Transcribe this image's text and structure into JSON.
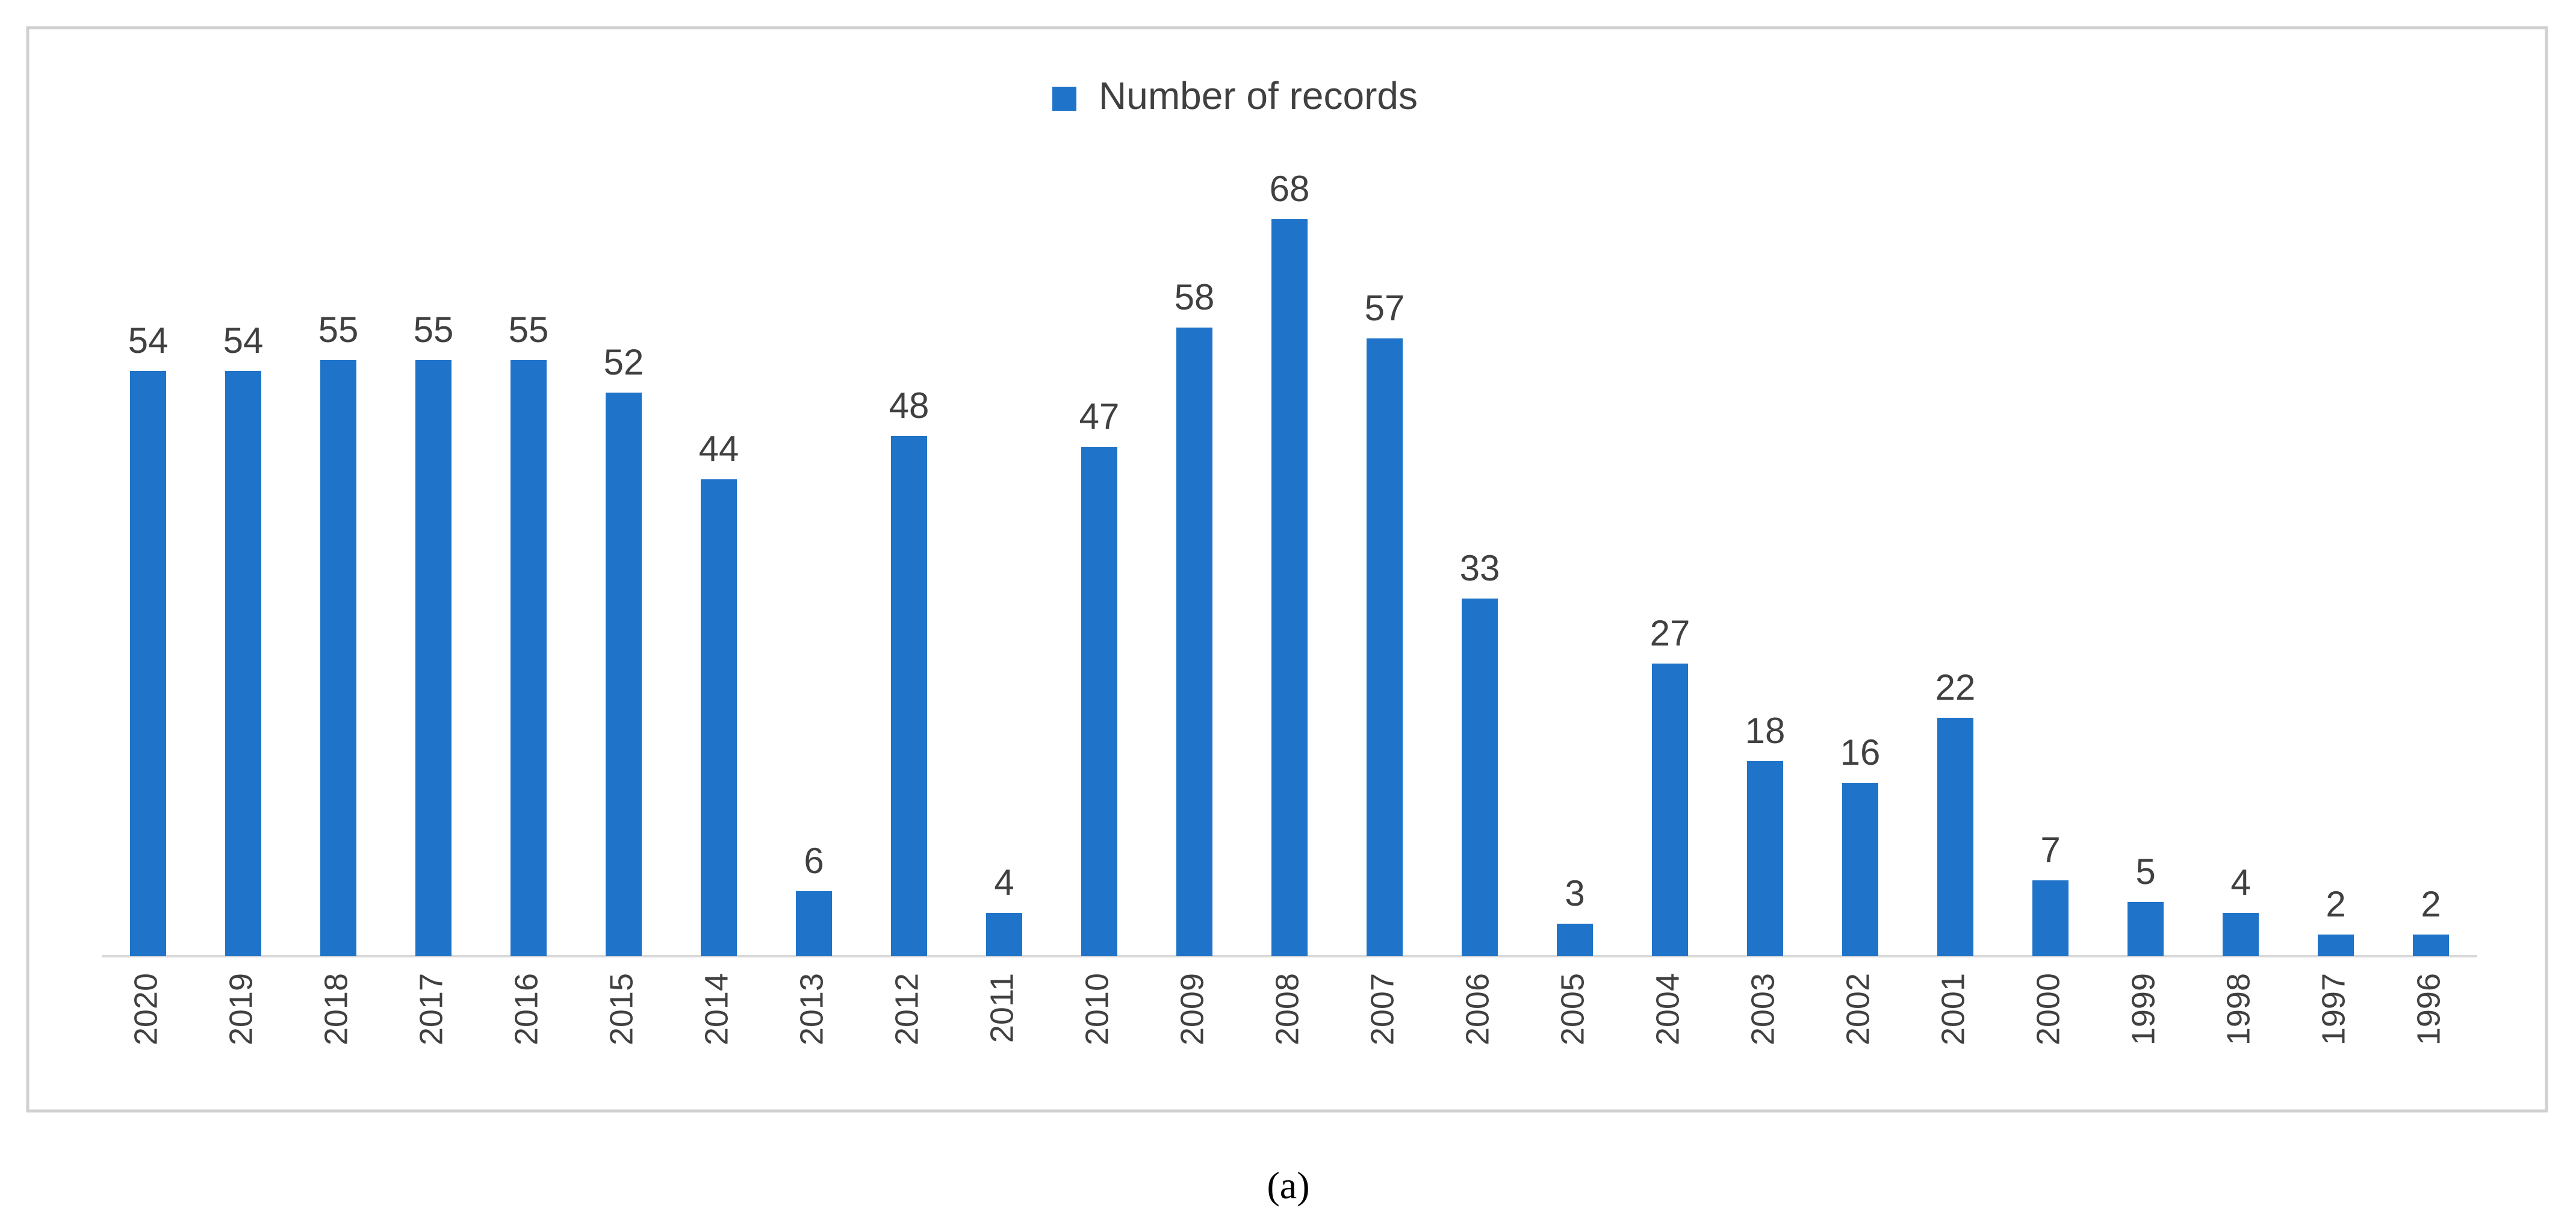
{
  "chart_data": {
    "type": "bar",
    "caption": "(a)",
    "categories": [
      "2020",
      "2019",
      "2018",
      "2017",
      "2016",
      "2015",
      "2014",
      "2013",
      "2012",
      "2011",
      "2010",
      "2009",
      "2008",
      "2007",
      "2006",
      "2005",
      "2004",
      "2003",
      "2002",
      "2001",
      "2000",
      "1999",
      "1998",
      "1997",
      "1996"
    ],
    "series": [
      {
        "name": "Number of records",
        "color": "#1f73c8",
        "values": [
          54,
          54,
          55,
          55,
          55,
          52,
          44,
          6,
          48,
          4,
          47,
          58,
          68,
          57,
          33,
          3,
          27,
          18,
          16,
          22,
          7,
          5,
          4,
          2,
          2
        ]
      }
    ],
    "data_labels": true
  }
}
